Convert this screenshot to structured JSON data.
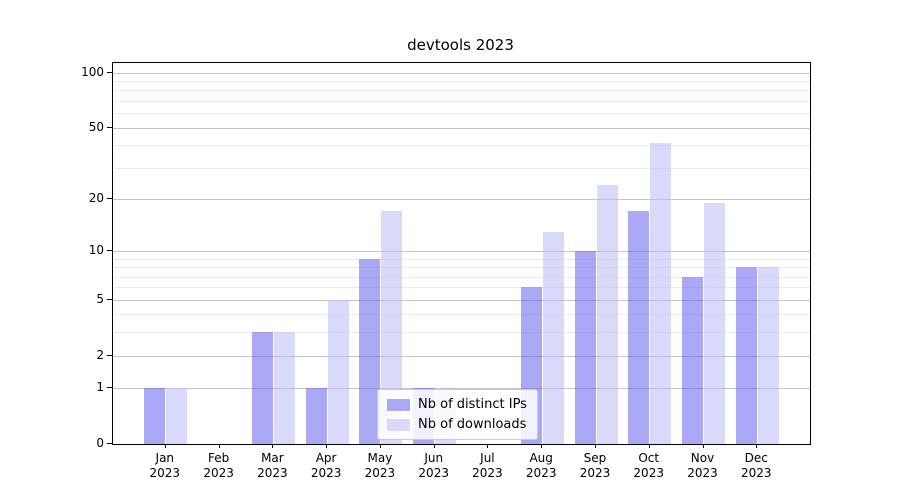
{
  "chart_data": {
    "type": "bar",
    "title": "devtools 2023",
    "categories": [
      "Jan\n2023",
      "Feb\n2023",
      "Mar\n2023",
      "Apr\n2023",
      "May\n2023",
      "Jun\n2023",
      "Jul\n2023",
      "Aug\n2023",
      "Sep\n2023",
      "Oct\n2023",
      "Nov\n2023",
      "Dec\n2023"
    ],
    "series": [
      {
        "name": "Nb of distinct IPs",
        "values": [
          1,
          0,
          3,
          1,
          9,
          1,
          0,
          6,
          10,
          17,
          7,
          8
        ],
        "fill": "rgba(99,99,237,0.55)",
        "legend_color": "#a9a9f3"
      },
      {
        "name": "Nb of downloads",
        "values": [
          1,
          0,
          3,
          5,
          17,
          1,
          0,
          13,
          24,
          41,
          19,
          8
        ],
        "fill": "rgba(186,186,245,0.55)",
        "legend_color": "#d9d9fa"
      }
    ],
    "xlabel": "",
    "ylabel": "",
    "yscale": "log1p",
    "ylim": [
      0,
      112
    ],
    "yticks_major": [
      0,
      1,
      2,
      5,
      10,
      20,
      50,
      100
    ],
    "yticks_minor": [
      3,
      4,
      6,
      7,
      8,
      9,
      30,
      40,
      60,
      70,
      80,
      90
    ],
    "grid": true,
    "legend_position": "lower-center",
    "colors": {
      "grid_major": "#c4c4c4",
      "grid_minor": "#ebebeb",
      "axis": "#000000",
      "background": "#ffffff"
    }
  }
}
